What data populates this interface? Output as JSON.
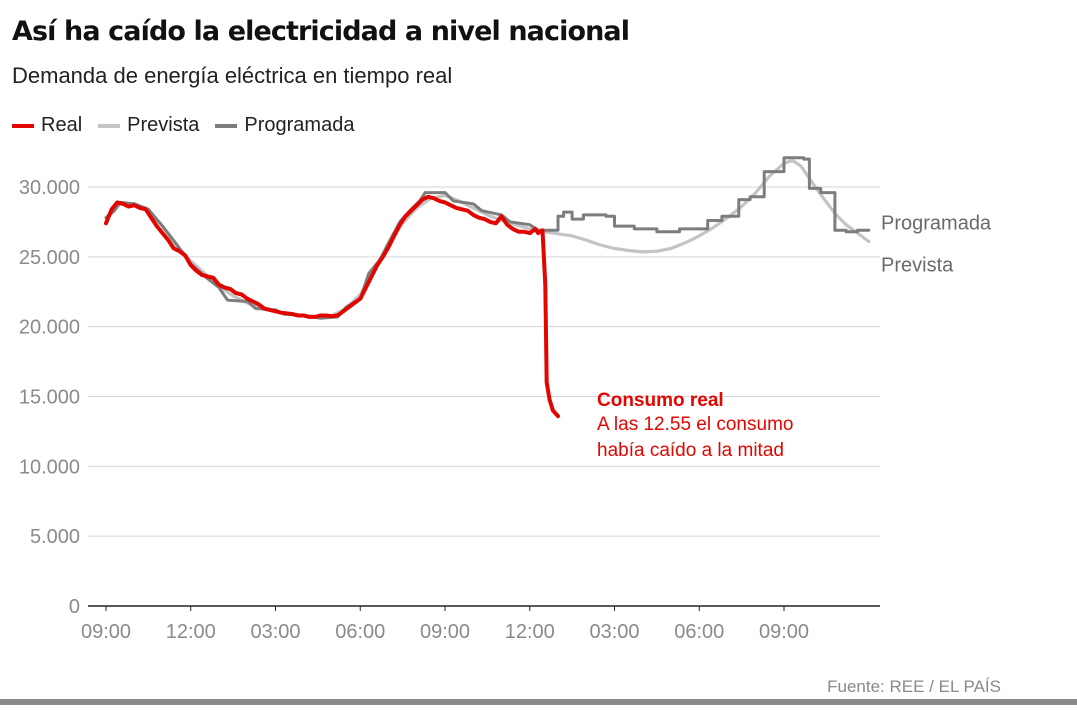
{
  "chart_data": {
    "type": "line",
    "title": "Así ha caído la electricidad a nivel nacional",
    "subtitle": "Demanda de energía eléctrica en tiempo real",
    "xlabel": "",
    "ylabel": "",
    "x_ticks": [
      "09:00",
      "12:00",
      "03:00",
      "06:00",
      "09:00",
      "12:00",
      "03:00",
      "06:00",
      "09:00"
    ],
    "y_ticks": [
      0,
      5000,
      10000,
      15000,
      20000,
      25000,
      30000
    ],
    "y_tick_labels": [
      "0",
      "5.000",
      "10.000",
      "15.000",
      "20.000",
      "25.000",
      "30.000"
    ],
    "xlim": [
      -0.3,
      27.8
    ],
    "ylim": [
      0,
      32000
    ],
    "grid": true,
    "legend_position": "top-left",
    "series": [
      {
        "name": "Real",
        "color": "#e10600",
        "points": [
          [
            0.0,
            27400
          ],
          [
            0.2,
            28400
          ],
          [
            0.4,
            28900
          ],
          [
            0.6,
            28800
          ],
          [
            0.8,
            28600
          ],
          [
            1.0,
            28700
          ],
          [
            1.2,
            28500
          ],
          [
            1.4,
            28400
          ],
          [
            1.6,
            27800
          ],
          [
            1.8,
            27200
          ],
          [
            2.0,
            26700
          ],
          [
            2.2,
            26200
          ],
          [
            2.4,
            25600
          ],
          [
            2.6,
            25400
          ],
          [
            2.8,
            25100
          ],
          [
            3.0,
            24400
          ],
          [
            3.2,
            24000
          ],
          [
            3.4,
            23700
          ],
          [
            3.6,
            23600
          ],
          [
            3.8,
            23500
          ],
          [
            4.0,
            23000
          ],
          [
            4.2,
            22800
          ],
          [
            4.4,
            22700
          ],
          [
            4.6,
            22400
          ],
          [
            4.8,
            22300
          ],
          [
            5.0,
            22000
          ],
          [
            5.2,
            21800
          ],
          [
            5.4,
            21600
          ],
          [
            5.6,
            21300
          ],
          [
            5.8,
            21200
          ],
          [
            6.0,
            21100
          ],
          [
            6.2,
            21000
          ],
          [
            6.4,
            20950
          ],
          [
            6.6,
            20900
          ],
          [
            6.8,
            20800
          ],
          [
            7.0,
            20800
          ],
          [
            7.2,
            20700
          ],
          [
            7.4,
            20700
          ],
          [
            7.6,
            20800
          ],
          [
            7.8,
            20800
          ],
          [
            8.0,
            20750
          ],
          [
            8.2,
            20800
          ],
          [
            8.4,
            21100
          ],
          [
            8.6,
            21400
          ],
          [
            8.8,
            21700
          ],
          [
            9.0,
            22000
          ],
          [
            9.2,
            22800
          ],
          [
            9.4,
            23600
          ],
          [
            9.6,
            24400
          ],
          [
            9.8,
            25000
          ],
          [
            10.0,
            25700
          ],
          [
            10.2,
            26500
          ],
          [
            10.4,
            27300
          ],
          [
            10.6,
            27900
          ],
          [
            10.8,
            28300
          ],
          [
            11.0,
            28700
          ],
          [
            11.2,
            29100
          ],
          [
            11.4,
            29300
          ],
          [
            11.6,
            29200
          ],
          [
            11.8,
            29000
          ],
          [
            12.0,
            28900
          ],
          [
            12.2,
            28700
          ],
          [
            12.4,
            28500
          ],
          [
            12.6,
            28400
          ],
          [
            12.8,
            28300
          ],
          [
            13.0,
            28000
          ],
          [
            13.2,
            27800
          ],
          [
            13.4,
            27700
          ],
          [
            13.6,
            27500
          ],
          [
            13.8,
            27400
          ],
          [
            14.0,
            27900
          ],
          [
            14.2,
            27300
          ],
          [
            14.4,
            27000
          ],
          [
            14.6,
            26800
          ],
          [
            14.8,
            26800
          ],
          [
            15.0,
            26700
          ],
          [
            15.2,
            27000
          ],
          [
            15.3,
            26700
          ],
          [
            15.45,
            26900
          ],
          [
            15.55,
            23000
          ],
          [
            15.6,
            16000
          ],
          [
            15.7,
            14800
          ],
          [
            15.82,
            14000
          ],
          [
            16.0,
            13600
          ]
        ]
      },
      {
        "name": "Prevista",
        "color": "#c4c4c4",
        "points": [
          [
            0.0,
            27800
          ],
          [
            0.5,
            28800
          ],
          [
            1.0,
            28800
          ],
          [
            1.5,
            28300
          ],
          [
            2.0,
            27200
          ],
          [
            2.5,
            25800
          ],
          [
            3.0,
            24700
          ],
          [
            3.5,
            23800
          ],
          [
            4.0,
            22900
          ],
          [
            4.5,
            22200
          ],
          [
            5.0,
            21700
          ],
          [
            5.5,
            21300
          ],
          [
            6.0,
            21100
          ],
          [
            6.5,
            20900
          ],
          [
            7.0,
            20800
          ],
          [
            7.5,
            20700
          ],
          [
            8.0,
            20800
          ],
          [
            8.5,
            21300
          ],
          [
            9.0,
            22300
          ],
          [
            9.5,
            24100
          ],
          [
            10.0,
            25900
          ],
          [
            10.5,
            27400
          ],
          [
            11.0,
            28500
          ],
          [
            11.5,
            29200
          ],
          [
            12.0,
            29400
          ],
          [
            12.5,
            29000
          ],
          [
            13.0,
            28500
          ],
          [
            13.5,
            28000
          ],
          [
            14.0,
            27600
          ],
          [
            14.5,
            27300
          ],
          [
            15.0,
            27000
          ],
          [
            15.5,
            26800
          ],
          [
            16.0,
            26650
          ],
          [
            16.5,
            26500
          ],
          [
            17.0,
            26200
          ],
          [
            17.5,
            25850
          ],
          [
            18.0,
            25600
          ],
          [
            18.5,
            25450
          ],
          [
            19.0,
            25350
          ],
          [
            19.5,
            25400
          ],
          [
            20.0,
            25600
          ],
          [
            20.5,
            26000
          ],
          [
            21.0,
            26500
          ],
          [
            21.5,
            27100
          ],
          [
            22.0,
            27800
          ],
          [
            22.5,
            28600
          ],
          [
            23.0,
            29600
          ],
          [
            23.5,
            30800
          ],
          [
            24.0,
            31700
          ],
          [
            24.3,
            31900
          ],
          [
            24.6,
            31500
          ],
          [
            25.0,
            30300
          ],
          [
            25.4,
            29200
          ],
          [
            25.8,
            28100
          ],
          [
            26.2,
            27300
          ],
          [
            26.6,
            26700
          ],
          [
            27.0,
            26100
          ]
        ]
      },
      {
        "name": "Programada",
        "color": "#7d7d7d",
        "points": [
          [
            0.0,
            27800
          ],
          [
            0.3,
            28300
          ],
          [
            0.5,
            28900
          ],
          [
            1.0,
            28800
          ],
          [
            1.5,
            28400
          ],
          [
            2.0,
            27200
          ],
          [
            2.5,
            25900
          ],
          [
            3.0,
            24500
          ],
          [
            3.5,
            23600
          ],
          [
            4.0,
            22800
          ],
          [
            4.3,
            21900
          ],
          [
            5.0,
            21800
          ],
          [
            5.3,
            21300
          ],
          [
            6.0,
            21200
          ],
          [
            6.3,
            20900
          ],
          [
            7.0,
            20800
          ],
          [
            7.6,
            20600
          ],
          [
            8.2,
            20700
          ],
          [
            8.5,
            21400
          ],
          [
            9.0,
            22000
          ],
          [
            9.3,
            23800
          ],
          [
            9.7,
            24800
          ],
          [
            10.0,
            26000
          ],
          [
            10.4,
            27500
          ],
          [
            10.8,
            28400
          ],
          [
            11.1,
            29000
          ],
          [
            11.3,
            29600
          ],
          [
            12.0,
            29600
          ],
          [
            12.3,
            29000
          ],
          [
            13.0,
            28800
          ],
          [
            13.3,
            28300
          ],
          [
            14.0,
            28000
          ],
          [
            14.3,
            27500
          ],
          [
            15.0,
            27300
          ],
          [
            15.3,
            26900
          ],
          [
            15.7,
            26900
          ],
          [
            16.0,
            26900
          ],
          [
            16.0,
            27900
          ],
          [
            16.2,
            27900
          ],
          [
            16.2,
            28200
          ],
          [
            16.5,
            28200
          ],
          [
            16.5,
            27700
          ],
          [
            16.9,
            27700
          ],
          [
            16.9,
            28000
          ],
          [
            17.7,
            28000
          ],
          [
            17.7,
            27900
          ],
          [
            18.0,
            27900
          ],
          [
            18.0,
            27200
          ],
          [
            18.7,
            27200
          ],
          [
            18.7,
            27000
          ],
          [
            19.5,
            27000
          ],
          [
            19.5,
            26800
          ],
          [
            20.3,
            26800
          ],
          [
            20.3,
            27000
          ],
          [
            21.3,
            27000
          ],
          [
            21.3,
            27600
          ],
          [
            21.8,
            27600
          ],
          [
            21.8,
            27900
          ],
          [
            22.4,
            27900
          ],
          [
            22.4,
            29100
          ],
          [
            22.8,
            29100
          ],
          [
            22.8,
            29300
          ],
          [
            23.3,
            29300
          ],
          [
            23.3,
            31100
          ],
          [
            24.0,
            31100
          ],
          [
            24.0,
            32100
          ],
          [
            24.7,
            32100
          ],
          [
            24.7,
            32000
          ],
          [
            24.9,
            32000
          ],
          [
            24.9,
            29900
          ],
          [
            25.3,
            29900
          ],
          [
            25.3,
            29600
          ],
          [
            25.8,
            29600
          ],
          [
            25.8,
            26900
          ],
          [
            26.2,
            26900
          ],
          [
            26.2,
            26800
          ],
          [
            26.6,
            26800
          ],
          [
            26.6,
            26900
          ],
          [
            27.0,
            26900
          ]
        ]
      }
    ],
    "series_end_labels": [
      {
        "series": "Programada",
        "text": "Programada"
      },
      {
        "series": "Prevista",
        "text": "Prevista"
      }
    ],
    "annotation": {
      "title": "Consumo real",
      "lines": [
        "A las 12.55 el consumo",
        "había caído a la mitad"
      ],
      "color": "#e10600"
    },
    "source": "Fuente: REE / EL PAÍS"
  }
}
